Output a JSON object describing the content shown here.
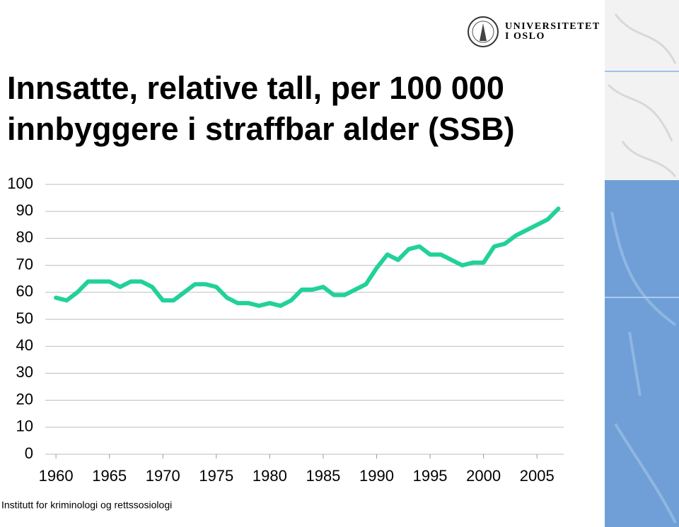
{
  "header": {
    "logo_line1": "UNIVERSITETET",
    "logo_line2": "I OSLO"
  },
  "chart_data": {
    "type": "line",
    "title": [
      "Innsatte, relative tall, per 100 000",
      "innbyggere i straffbar alder (SSB)"
    ],
    "x": [
      1960,
      1961,
      1962,
      1963,
      1964,
      1965,
      1966,
      1967,
      1968,
      1969,
      1970,
      1971,
      1972,
      1973,
      1974,
      1975,
      1976,
      1977,
      1978,
      1979,
      1980,
      1981,
      1982,
      1983,
      1984,
      1985,
      1986,
      1987,
      1988,
      1989,
      1990,
      1991,
      1992,
      1993,
      1994,
      1995,
      1996,
      1997,
      1998,
      1999,
      2000,
      2001,
      2002,
      2003,
      2004,
      2005,
      2006,
      2007
    ],
    "series": [
      {
        "color": "#22d19a",
        "values": [
          58,
          57,
          60,
          64,
          64,
          64,
          62,
          64,
          64,
          62,
          57,
          57,
          60,
          63,
          63,
          62,
          58,
          56,
          56,
          55,
          56,
          55,
          57,
          61,
          61,
          62,
          59,
          59,
          61,
          63,
          69,
          74,
          72,
          76,
          77,
          74,
          74,
          72,
          70,
          71,
          71,
          77,
          78,
          81,
          83,
          85,
          87,
          91
        ]
      }
    ],
    "xlim": [
      1959,
      2007.5
    ],
    "xticks": [
      1960,
      1965,
      1970,
      1975,
      1980,
      1985,
      1990,
      1995,
      2000,
      2005
    ],
    "ylim": [
      0,
      100
    ],
    "yticks": [
      0,
      10,
      20,
      30,
      40,
      50,
      60,
      70,
      80,
      90,
      100
    ],
    "grid": true
  },
  "footer": "Institutt for kriminologi og rettssosiologi"
}
